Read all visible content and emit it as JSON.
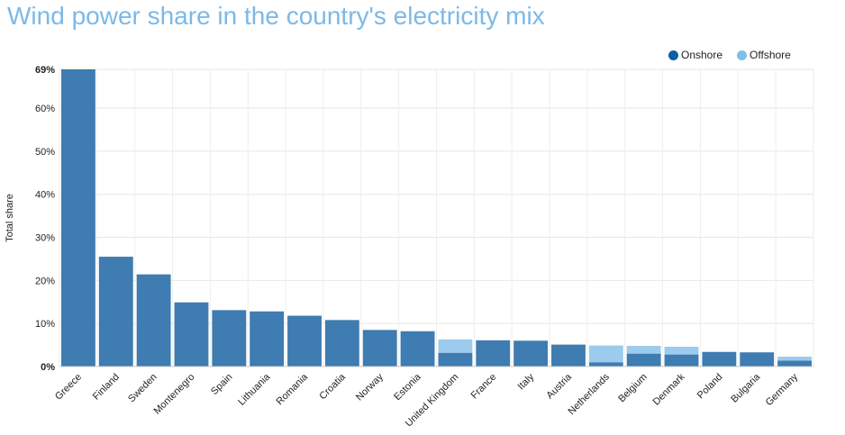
{
  "title": "Wind power share in the country's electricity mix",
  "legend": [
    {
      "label": "Onshore",
      "color": "#0e5ea8"
    },
    {
      "label": "Offshore",
      "color": "#7cc0ea"
    }
  ],
  "chart_data": {
    "type": "bar",
    "stacked": true,
    "title": "Wind power share in the country's electricity mix",
    "ylabel": "Total share",
    "xlabel": "",
    "ylim": [
      0,
      69
    ],
    "yticks": [
      {
        "value": 0,
        "label": "0%"
      },
      {
        "value": 10,
        "label": "10%"
      },
      {
        "value": 20,
        "label": "20%"
      },
      {
        "value": 30,
        "label": "30%"
      },
      {
        "value": 40,
        "label": "40%"
      },
      {
        "value": 50,
        "label": "50%"
      },
      {
        "value": 60,
        "label": "60%"
      },
      {
        "value": 69,
        "label": "69%"
      }
    ],
    "grid": true,
    "legend_position": "top-right",
    "categories": [
      "Greece",
      "Finland",
      "Sweden",
      "Montenegro",
      "Spain",
      "Lithuania",
      "Romania",
      "Croatia",
      "Norway",
      "Estonia",
      "United Kingdom",
      "France",
      "Italy",
      "Austria",
      "Netherlands",
      "Belgium",
      "Denmark",
      "Poland",
      "Bulgaria",
      "Germany"
    ],
    "series": [
      {
        "name": "Onshore",
        "color": "#3e7cb1",
        "values": [
          69,
          25.5,
          21.4,
          14.9,
          13.1,
          12.8,
          11.8,
          10.8,
          8.5,
          8.2,
          3.2,
          6.1,
          6.0,
          5.1,
          1.0,
          3.0,
          2.8,
          3.4,
          3.3,
          1.4
        ]
      },
      {
        "name": "Offshore",
        "color": "#9ccbee",
        "values": [
          0,
          0,
          0,
          0,
          0,
          0,
          0,
          0,
          0,
          0,
          3.1,
          0,
          0,
          0,
          3.9,
          1.8,
          1.8,
          0,
          0,
          0.9
        ]
      }
    ]
  }
}
